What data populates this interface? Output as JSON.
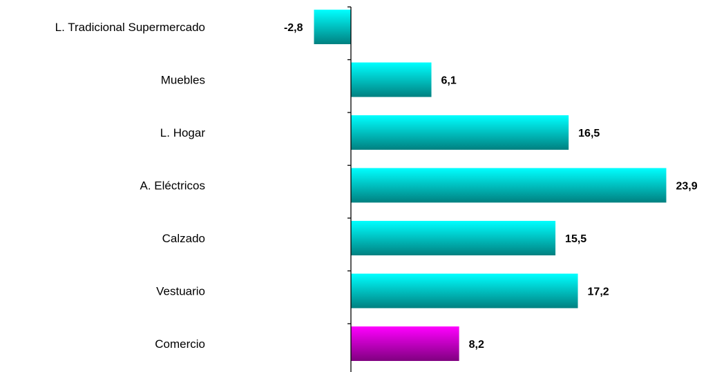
{
  "chart_data": {
    "type": "bar",
    "orientation": "horizontal",
    "categories": [
      "L. Tradicional Supermercado",
      "Muebles",
      "L. Hogar",
      "A. Eléctricos",
      "Calzado",
      "Vestuario",
      "Comercio"
    ],
    "values": [
      -2.8,
      6.1,
      16.5,
      23.9,
      15.5,
      17.2,
      8.2
    ],
    "value_labels": [
      "-2,8",
      "6,1",
      "16,5",
      "23,9",
      "15,5",
      "17,2",
      "8,2"
    ],
    "bar_colors": [
      "#00c8c8",
      "#00c8c8",
      "#00c8c8",
      "#00c8c8",
      "#00c8c8",
      "#00c8c8",
      "#c000c0"
    ],
    "gradient": {
      "cyan": [
        "#00ffff",
        "#008080"
      ],
      "magenta": [
        "#ff00ff",
        "#800080"
      ]
    },
    "title": "",
    "xlabel": "",
    "ylabel": "",
    "xlim": [
      -2.8,
      23.9
    ],
    "grid": false,
    "legend": "none"
  }
}
